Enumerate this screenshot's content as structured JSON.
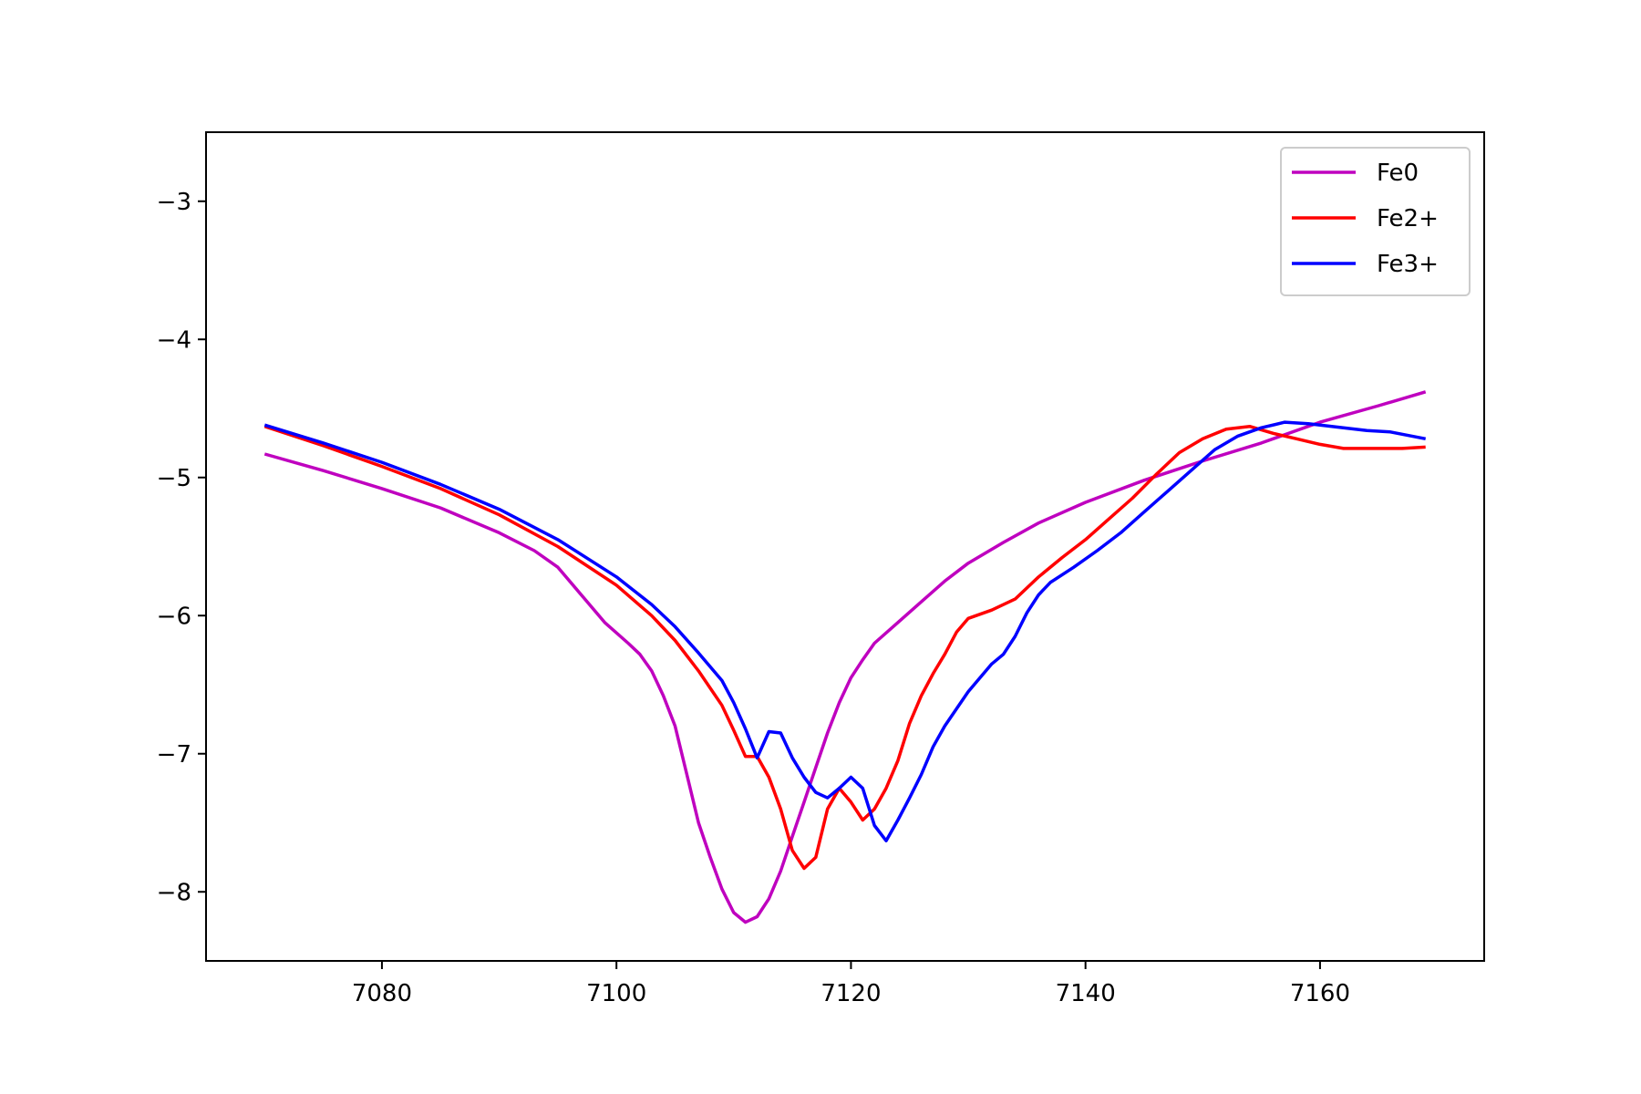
{
  "chart_data": {
    "type": "line",
    "title": "",
    "xlabel": "",
    "ylabel": "",
    "xlim": [
      7065,
      7174
    ],
    "ylim": [
      -8.5,
      -2.5
    ],
    "xticks": [
      7080,
      7100,
      7120,
      7140,
      7160
    ],
    "yticks": [
      -3,
      -4,
      -5,
      -6,
      -7,
      -8
    ],
    "xtick_labels": [
      "7080",
      "7100",
      "7120",
      "7140",
      "7160"
    ],
    "ytick_labels": [
      "−3",
      "−4",
      "−5",
      "−6",
      "−7",
      "−8"
    ],
    "grid": false,
    "legend_position": "top-right",
    "series": [
      {
        "name": "Fe0",
        "color": "#bf00bf",
        "points": [
          [
            7070,
            -4.83
          ],
          [
            7075,
            -4.95
          ],
          [
            7080,
            -5.08
          ],
          [
            7085,
            -5.22
          ],
          [
            7090,
            -5.4
          ],
          [
            7093,
            -5.53
          ],
          [
            7095,
            -5.65
          ],
          [
            7097,
            -5.85
          ],
          [
            7099,
            -6.05
          ],
          [
            7101,
            -6.2
          ],
          [
            7102,
            -6.28
          ],
          [
            7103,
            -6.4
          ],
          [
            7104,
            -6.58
          ],
          [
            7105,
            -6.8
          ],
          [
            7106,
            -7.15
          ],
          [
            7107,
            -7.5
          ],
          [
            7108,
            -7.75
          ],
          [
            7109,
            -7.98
          ],
          [
            7110,
            -8.15
          ],
          [
            7111,
            -8.22
          ],
          [
            7112,
            -8.18
          ],
          [
            7113,
            -8.05
          ],
          [
            7114,
            -7.85
          ],
          [
            7115,
            -7.6
          ],
          [
            7116,
            -7.35
          ],
          [
            7117,
            -7.1
          ],
          [
            7118,
            -6.85
          ],
          [
            7119,
            -6.63
          ],
          [
            7120,
            -6.45
          ],
          [
            7121,
            -6.32
          ],
          [
            7122,
            -6.2
          ],
          [
            7124,
            -6.05
          ],
          [
            7126,
            -5.9
          ],
          [
            7128,
            -5.75
          ],
          [
            7130,
            -5.62
          ],
          [
            7133,
            -5.47
          ],
          [
            7136,
            -5.33
          ],
          [
            7140,
            -5.18
          ],
          [
            7145,
            -5.02
          ],
          [
            7150,
            -4.88
          ],
          [
            7155,
            -4.75
          ],
          [
            7160,
            -4.6
          ],
          [
            7165,
            -4.48
          ],
          [
            7169,
            -4.38
          ]
        ]
      },
      {
        "name": "Fe2+",
        "color": "#ff0000",
        "points": [
          [
            7070,
            -4.63
          ],
          [
            7075,
            -4.77
          ],
          [
            7080,
            -4.92
          ],
          [
            7085,
            -5.08
          ],
          [
            7090,
            -5.27
          ],
          [
            7095,
            -5.5
          ],
          [
            7100,
            -5.78
          ],
          [
            7103,
            -6.0
          ],
          [
            7105,
            -6.18
          ],
          [
            7107,
            -6.4
          ],
          [
            7109,
            -6.65
          ],
          [
            7110,
            -6.83
          ],
          [
            7111,
            -7.02
          ],
          [
            7112,
            -7.02
          ],
          [
            7113,
            -7.17
          ],
          [
            7114,
            -7.4
          ],
          [
            7115,
            -7.7
          ],
          [
            7116,
            -7.83
          ],
          [
            7117,
            -7.75
          ],
          [
            7118,
            -7.4
          ],
          [
            7119,
            -7.25
          ],
          [
            7120,
            -7.35
          ],
          [
            7121,
            -7.48
          ],
          [
            7122,
            -7.4
          ],
          [
            7123,
            -7.25
          ],
          [
            7124,
            -7.05
          ],
          [
            7125,
            -6.78
          ],
          [
            7126,
            -6.58
          ],
          [
            7127,
            -6.42
          ],
          [
            7128,
            -6.28
          ],
          [
            7129,
            -6.12
          ],
          [
            7130,
            -6.02
          ],
          [
            7132,
            -5.96
          ],
          [
            7134,
            -5.88
          ],
          [
            7136,
            -5.72
          ],
          [
            7138,
            -5.58
          ],
          [
            7140,
            -5.45
          ],
          [
            7142,
            -5.3
          ],
          [
            7144,
            -5.15
          ],
          [
            7146,
            -4.98
          ],
          [
            7148,
            -4.82
          ],
          [
            7150,
            -4.72
          ],
          [
            7152,
            -4.65
          ],
          [
            7154,
            -4.63
          ],
          [
            7156,
            -4.68
          ],
          [
            7158,
            -4.72
          ],
          [
            7160,
            -4.76
          ],
          [
            7162,
            -4.79
          ],
          [
            7165,
            -4.79
          ],
          [
            7167,
            -4.79
          ],
          [
            7169,
            -4.78
          ]
        ]
      },
      {
        "name": "Fe3+",
        "color": "#0000ff",
        "points": [
          [
            7070,
            -4.62
          ],
          [
            7075,
            -4.75
          ],
          [
            7080,
            -4.89
          ],
          [
            7085,
            -5.05
          ],
          [
            7090,
            -5.23
          ],
          [
            7095,
            -5.45
          ],
          [
            7100,
            -5.72
          ],
          [
            7103,
            -5.92
          ],
          [
            7105,
            -6.08
          ],
          [
            7107,
            -6.27
          ],
          [
            7109,
            -6.47
          ],
          [
            7110,
            -6.63
          ],
          [
            7111,
            -6.82
          ],
          [
            7112,
            -7.03
          ],
          [
            7113,
            -6.84
          ],
          [
            7114,
            -6.85
          ],
          [
            7115,
            -7.03
          ],
          [
            7116,
            -7.17
          ],
          [
            7117,
            -7.28
          ],
          [
            7118,
            -7.32
          ],
          [
            7119,
            -7.25
          ],
          [
            7120,
            -7.17
          ],
          [
            7121,
            -7.25
          ],
          [
            7122,
            -7.52
          ],
          [
            7123,
            -7.63
          ],
          [
            7124,
            -7.48
          ],
          [
            7125,
            -7.32
          ],
          [
            7126,
            -7.15
          ],
          [
            7127,
            -6.95
          ],
          [
            7128,
            -6.8
          ],
          [
            7130,
            -6.55
          ],
          [
            7132,
            -6.35
          ],
          [
            7133,
            -6.28
          ],
          [
            7134,
            -6.15
          ],
          [
            7135,
            -5.98
          ],
          [
            7136,
            -5.85
          ],
          [
            7137,
            -5.76
          ],
          [
            7139,
            -5.65
          ],
          [
            7141,
            -5.53
          ],
          [
            7143,
            -5.4
          ],
          [
            7145,
            -5.25
          ],
          [
            7147,
            -5.1
          ],
          [
            7149,
            -4.95
          ],
          [
            7151,
            -4.8
          ],
          [
            7153,
            -4.7
          ],
          [
            7155,
            -4.64
          ],
          [
            7157,
            -4.6
          ],
          [
            7159,
            -4.61
          ],
          [
            7161,
            -4.63
          ],
          [
            7164,
            -4.66
          ],
          [
            7166,
            -4.67
          ],
          [
            7169,
            -4.72
          ]
        ]
      }
    ]
  }
}
